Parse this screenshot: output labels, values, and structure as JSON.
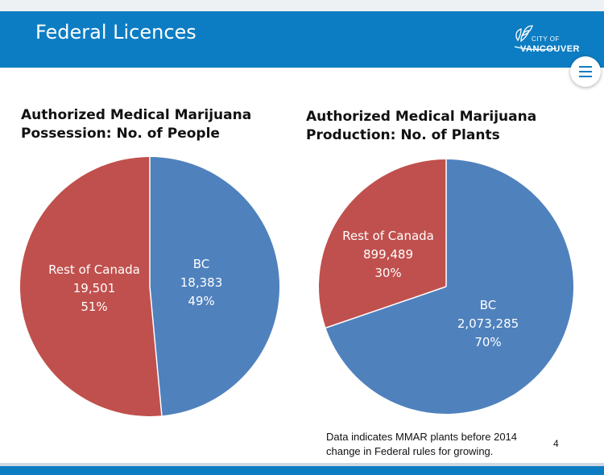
{
  "header": {
    "title": "Federal Licences",
    "logo_line1": "CITY OF",
    "logo_line2": "VANCOUVER"
  },
  "colors": {
    "header_bg": "#0d7dc3",
    "bc": "#4f81bd",
    "rest_of_canada": "#c0504d"
  },
  "menu": {
    "icon": "hamburger-menu-icon"
  },
  "chart_data": [
    {
      "type": "pie",
      "title_line1": "Authorized Medical Marijuana",
      "title_line2": "Possession: No. of People",
      "slices": [
        {
          "label": "BC",
          "value": 18383,
          "value_text": "18,383",
          "percent_text": "49%",
          "color": "#4f81bd"
        },
        {
          "label": "Rest of Canada",
          "value": 19501,
          "value_text": "19,501",
          "percent_text": "51%",
          "color": "#c0504d"
        }
      ]
    },
    {
      "type": "pie",
      "title_line1": "Authorized Medical Marijuana",
      "title_line2": "Production: No. of Plants",
      "slices": [
        {
          "label": "BC",
          "value": 2073285,
          "value_text": "2,073,285",
          "percent_text": "70%",
          "color": "#4f81bd"
        },
        {
          "label": "Rest of Canada",
          "value": 899489,
          "value_text": "899,489",
          "percent_text": "30%",
          "color": "#c0504d"
        }
      ]
    }
  ],
  "footnote": {
    "line1": "Data indicates MMAR plants before 2014",
    "line2": "change in Federal rules for growing."
  },
  "page_number": "4"
}
